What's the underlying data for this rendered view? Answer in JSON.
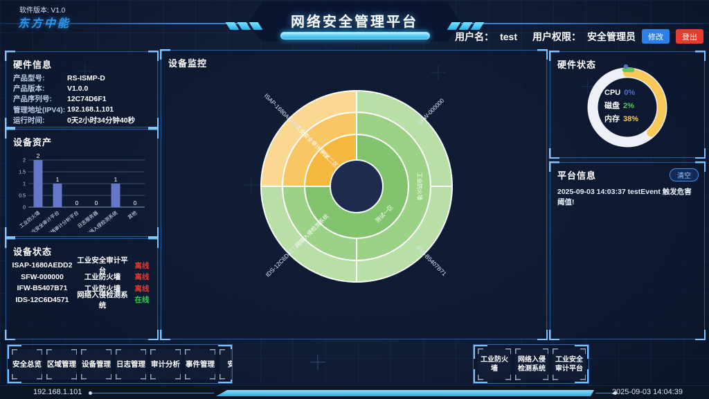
{
  "header": {
    "software_version": "软件版本: V1.0",
    "logo": "东方中能",
    "title": "网络安全管理平台",
    "username_label": "用户名：",
    "username": "test",
    "permission_label": "用户权限：",
    "permission": "安全管理员",
    "modify_button": "修改",
    "logout_button": "登出"
  },
  "panels": {
    "hardware_info": {
      "title": "硬件信息",
      "rows": [
        {
          "label": "产品型号:",
          "value": "RS-ISMP-D"
        },
        {
          "label": "产品版本:",
          "value": "V1.0.0"
        },
        {
          "label": "产品序列号:",
          "value": "12C74D6F1"
        },
        {
          "label": "管理地址(IPV4):",
          "value": "192.168.1.101"
        },
        {
          "label": "运行时间:",
          "value": "0天2小时34分钟40秒"
        }
      ]
    },
    "device_status": {
      "title": "设备状态",
      "rows": [
        {
          "id": "ISAP-1680AEDD2",
          "type": "工业安全审计平台",
          "status": "离线",
          "online": false
        },
        {
          "id": "SFW-000000",
          "type": "工业防火墙",
          "status": "离线",
          "online": false
        },
        {
          "id": "IFW-B5407B71",
          "type": "工业防火墙",
          "status": "离线",
          "online": false
        },
        {
          "id": "IDS-12C6D4571",
          "type": "网络入侵检测系统",
          "status": "在线",
          "online": true
        }
      ]
    },
    "platform_info": {
      "title": "平台信息",
      "clear_button": "清空",
      "messages": [
        "2025-09-03 14:03:37 testEvent 触发危害阈值!"
      ]
    }
  },
  "chart_data": [
    {
      "type": "bar",
      "title": "设备资产",
      "categories": [
        "工业防火墙",
        "工业安全审计平台",
        "工业网络审计分析平台",
        "日志服务器",
        "网络入侵检测系统",
        "其他"
      ],
      "values": [
        2,
        1,
        0,
        0,
        1,
        0
      ],
      "ylim": [
        0,
        2
      ],
      "yticks": [
        0,
        0.5,
        1,
        1.5,
        2
      ],
      "bar_color": "#6577c8",
      "grid": true,
      "legend": "none"
    },
    {
      "type": "pie",
      "variant": "sunburst",
      "title": "设备监控",
      "hole_color": "#1d2c4e",
      "rings": [
        {
          "name": "zones",
          "segments": [
            {
              "label": "测试一区",
              "start": 0,
              "end": 270,
              "color": "#82c36d",
              "label_angle": 135,
              "label_rotate": -45
            },
            {
              "label": "测试二区",
              "start": 270,
              "end": 360,
              "color": "#f6b73e",
              "label_angle": 315,
              "label_rotate": 45
            }
          ]
        },
        {
          "name": "device-types",
          "segments": [
            {
              "label": "工业防火墙",
              "start": 0,
              "end": 180,
              "color": "#9bd286",
              "label_angle": 90,
              "label_rotate": 90
            },
            {
              "label": "网络入侵检测系统",
              "start": 180,
              "end": 270,
              "color": "#9bd286",
              "label_angle": 225,
              "label_rotate": -45
            },
            {
              "label": "工业安全审计平台",
              "start": 270,
              "end": 360,
              "color": "#f8c763",
              "label_angle": 315,
              "label_rotate": 45
            }
          ]
        },
        {
          "name": "devices",
          "segments": [
            {
              "label": "SFW-000000",
              "start": 0,
              "end": 90,
              "color": "#b7dfa6",
              "label_angle": 45,
              "label_rotate": -45,
              "outside": true
            },
            {
              "label": "IFW-B5407B71",
              "start": 90,
              "end": 180,
              "color": "#b7dfa6",
              "label_angle": 135,
              "label_rotate": 45,
              "outside": true
            },
            {
              "label": "IDS-12C6D4571",
              "start": 180,
              "end": 270,
              "color": "#b7dfa6",
              "label_angle": 225,
              "label_rotate": -45,
              "outside": true
            },
            {
              "label": "ISAP-1680AEDD2",
              "start": 270,
              "end": 360,
              "color": "#fad891",
              "label_angle": 315,
              "label_rotate": 45,
              "outside": true
            }
          ]
        }
      ]
    },
    {
      "type": "pie",
      "variant": "donut-gauge",
      "title": "硬件状态",
      "ring_color": "#edf1f7",
      "metrics": [
        {
          "label": "CPU",
          "value": "0%",
          "pct": 0,
          "color": "#5470c6"
        },
        {
          "label": "磁盘",
          "value": "2%",
          "pct": 2,
          "color": "#62c45e"
        },
        {
          "label": "内存",
          "value": "38%",
          "pct": 38,
          "color": "#fac858"
        }
      ]
    }
  ],
  "toolbar": {
    "left_buttons": [
      "安全总览",
      "区域管理",
      "设备管理",
      "日志管理",
      "审计分析",
      "事件管理",
      "安全"
    ],
    "right_buttons": [
      "工业防火墙",
      "网络入侵检测系统",
      "工业安全审计平台"
    ]
  },
  "footer": {
    "ip": "192.168.1.101",
    "timestamp": "2025-09-03 14:04:39"
  },
  "colors": {
    "online": "#2bd24b",
    "offline": "#e8392e"
  }
}
